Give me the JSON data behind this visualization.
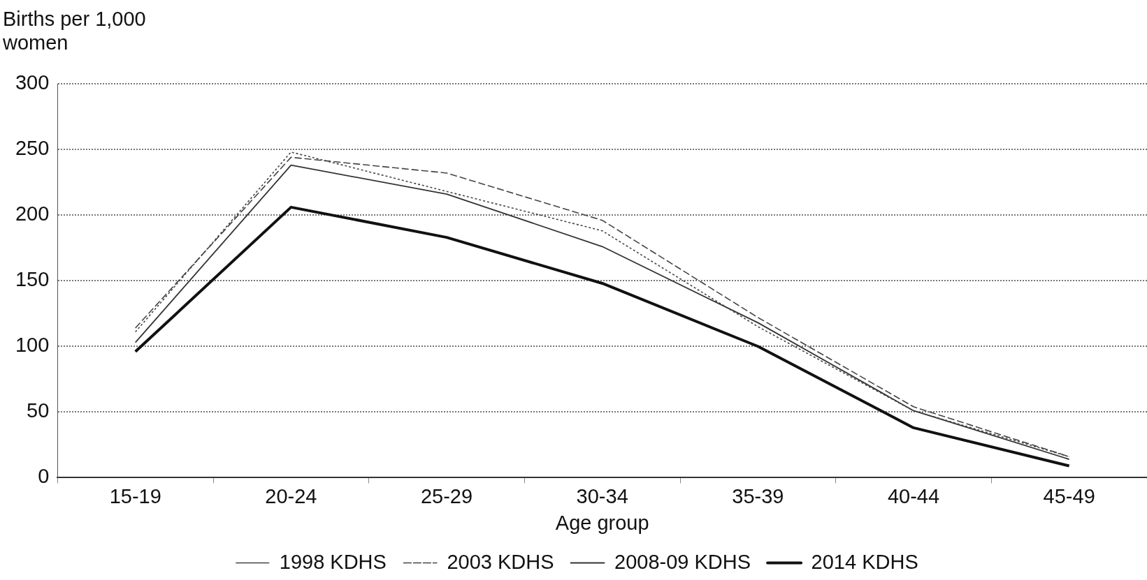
{
  "chart_data": {
    "type": "line",
    "xlabel": "Age group",
    "ylabel": "Births per 1,000 women",
    "categories": [
      "15-19",
      "20-24",
      "25-29",
      "30-34",
      "35-39",
      "40-44",
      "45-49"
    ],
    "series": [
      {
        "name": "1998 KDHS",
        "color": "#444444",
        "line_style": "dotted",
        "values": [
          111,
          248,
          218,
          188,
          115,
          51,
          16
        ]
      },
      {
        "name": "2003 KDHS",
        "color": "#444444",
        "line_style": "dashed",
        "values": [
          114,
          244,
          232,
          196,
          122,
          54,
          16
        ]
      },
      {
        "name": "2008-09 KDHS",
        "color": "#333333",
        "line_style": "solid",
        "values": [
          103,
          238,
          216,
          176,
          118,
          51,
          14
        ]
      },
      {
        "name": "2014 KDHS",
        "color": "#111111",
        "line_style": "solid",
        "values": [
          96,
          206,
          183,
          148,
          100,
          38,
          9
        ]
      }
    ],
    "ylim": [
      0,
      300
    ],
    "yticks": [
      0,
      50,
      100,
      150,
      200,
      250,
      300
    ],
    "grid": "y",
    "legend": "bottom",
    "marker": "none"
  }
}
